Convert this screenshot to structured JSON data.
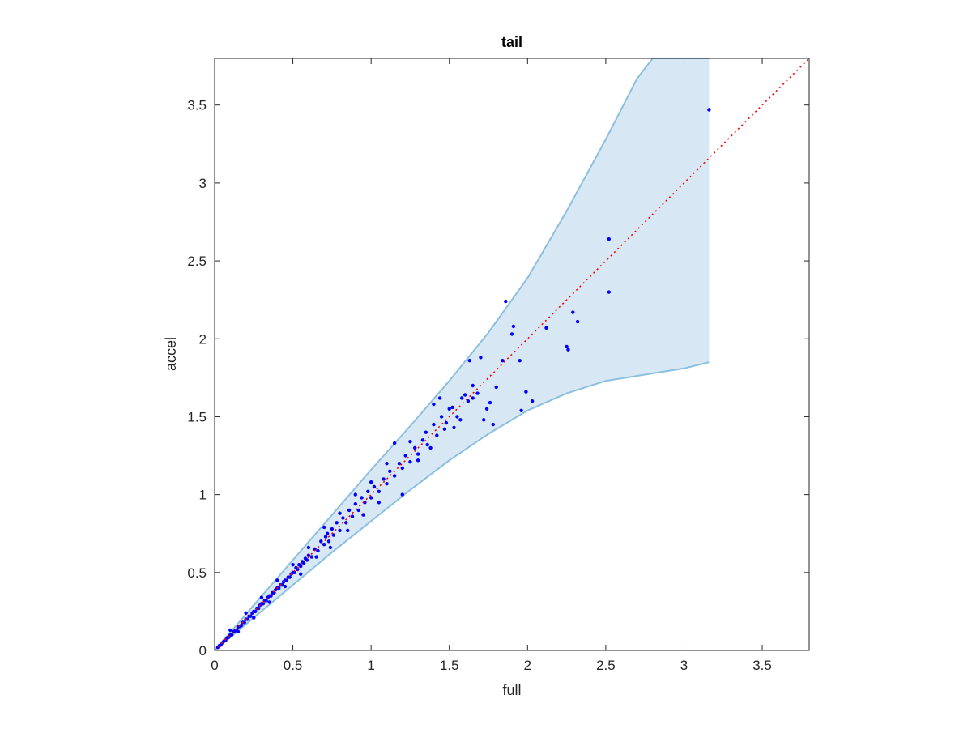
{
  "chart_data": {
    "type": "scatter",
    "title": "tail",
    "xlabel": "full",
    "ylabel": "accel",
    "xlim": [
      0,
      3.8
    ],
    "ylim": [
      0,
      3.8
    ],
    "grid": false,
    "x_ticks": [
      0,
      0.5,
      1,
      1.5,
      2,
      2.5,
      3,
      3.5
    ],
    "x_tick_labels": [
      "0",
      "0.5",
      "1",
      "1.5",
      "2",
      "2.5",
      "3",
      "3.5"
    ],
    "y_ticks": [
      0,
      0.5,
      1,
      1.5,
      2,
      2.5,
      3,
      3.5
    ],
    "y_tick_labels": [
      "0",
      "0.5",
      "1",
      "1.5",
      "2",
      "2.5",
      "3",
      "3.5"
    ],
    "reference_line": {
      "style": "dotted",
      "color": "#ff0000",
      "x": [
        0,
        3.8
      ],
      "y": [
        0,
        3.8
      ]
    },
    "band": {
      "fill_color": "#d7e8f4",
      "edge_color": "#8bbfe0",
      "upper": [
        [
          0,
          0
        ],
        [
          0.25,
          0.29
        ],
        [
          0.5,
          0.58
        ],
        [
          0.75,
          0.87
        ],
        [
          1.0,
          1.16
        ],
        [
          1.25,
          1.44
        ],
        [
          1.5,
          1.73
        ],
        [
          1.75,
          2.04
        ],
        [
          2.0,
          2.39
        ],
        [
          2.25,
          2.82
        ],
        [
          2.5,
          3.28
        ],
        [
          2.7,
          3.67
        ],
        [
          2.8,
          3.8
        ],
        [
          3.16,
          3.8
        ]
      ],
      "lower": [
        [
          0,
          0
        ],
        [
          0.25,
          0.21
        ],
        [
          0.5,
          0.42
        ],
        [
          0.75,
          0.63
        ],
        [
          1.0,
          0.83
        ],
        [
          1.25,
          1.03
        ],
        [
          1.5,
          1.22
        ],
        [
          1.75,
          1.39
        ],
        [
          2.0,
          1.54
        ],
        [
          2.25,
          1.65
        ],
        [
          2.5,
          1.73
        ],
        [
          2.75,
          1.77
        ],
        [
          3.0,
          1.81
        ],
        [
          3.16,
          1.85
        ]
      ]
    },
    "series": [
      {
        "marker_color": "#0000ff",
        "points": [
          [
            0.02,
            0.02
          ],
          [
            0.03,
            0.03
          ],
          [
            0.04,
            0.035
          ],
          [
            0.05,
            0.05
          ],
          [
            0.06,
            0.06
          ],
          [
            0.07,
            0.065
          ],
          [
            0.08,
            0.08
          ],
          [
            0.09,
            0.085
          ],
          [
            0.1,
            0.1
          ],
          [
            0.11,
            0.1
          ],
          [
            0.12,
            0.12
          ],
          [
            0.13,
            0.125
          ],
          [
            0.14,
            0.13
          ],
          [
            0.15,
            0.15
          ],
          [
            0.16,
            0.155
          ],
          [
            0.17,
            0.16
          ],
          [
            0.18,
            0.18
          ],
          [
            0.19,
            0.18
          ],
          [
            0.2,
            0.2
          ],
          [
            0.21,
            0.2
          ],
          [
            0.22,
            0.22
          ],
          [
            0.23,
            0.22
          ],
          [
            0.24,
            0.24
          ],
          [
            0.25,
            0.25
          ],
          [
            0.26,
            0.25
          ],
          [
            0.27,
            0.27
          ],
          [
            0.28,
            0.27
          ],
          [
            0.29,
            0.29
          ],
          [
            0.3,
            0.3
          ],
          [
            0.31,
            0.3
          ],
          [
            0.32,
            0.32
          ],
          [
            0.33,
            0.32
          ],
          [
            0.34,
            0.34
          ],
          [
            0.35,
            0.35
          ],
          [
            0.36,
            0.35
          ],
          [
            0.37,
            0.37
          ],
          [
            0.38,
            0.37
          ],
          [
            0.39,
            0.39
          ],
          [
            0.4,
            0.4
          ],
          [
            0.41,
            0.4
          ],
          [
            0.42,
            0.42
          ],
          [
            0.43,
            0.42
          ],
          [
            0.44,
            0.44
          ],
          [
            0.45,
            0.45
          ],
          [
            0.46,
            0.45
          ],
          [
            0.47,
            0.47
          ],
          [
            0.48,
            0.47
          ],
          [
            0.49,
            0.49
          ],
          [
            0.5,
            0.5
          ],
          [
            0.51,
            0.5
          ],
          [
            0.52,
            0.53
          ],
          [
            0.53,
            0.52
          ],
          [
            0.54,
            0.55
          ],
          [
            0.55,
            0.54
          ],
          [
            0.56,
            0.57
          ],
          [
            0.57,
            0.56
          ],
          [
            0.58,
            0.59
          ],
          [
            0.59,
            0.58
          ],
          [
            0.6,
            0.61
          ],
          [
            0.62,
            0.6
          ],
          [
            0.64,
            0.65
          ],
          [
            0.66,
            0.64
          ],
          [
            0.68,
            0.7
          ],
          [
            0.7,
            0.68
          ],
          [
            0.71,
            0.73
          ],
          [
            0.72,
            0.75
          ],
          [
            0.73,
            0.7
          ],
          [
            0.75,
            0.78
          ],
          [
            0.76,
            0.74
          ],
          [
            0.78,
            0.82
          ],
          [
            0.8,
            0.77
          ],
          [
            0.82,
            0.85
          ],
          [
            0.84,
            0.82
          ],
          [
            0.86,
            0.9
          ],
          [
            0.88,
            0.86
          ],
          [
            0.9,
            0.94
          ],
          [
            0.92,
            0.9
          ],
          [
            0.94,
            0.98
          ],
          [
            0.96,
            0.95
          ],
          [
            0.98,
            1.02
          ],
          [
            1.0,
            0.98
          ],
          [
            1.02,
            1.05
          ],
          [
            1.05,
            1.02
          ],
          [
            1.08,
            1.1
          ],
          [
            1.1,
            1.07
          ],
          [
            1.12,
            1.15
          ],
          [
            1.15,
            1.12
          ],
          [
            1.18,
            1.2
          ],
          [
            1.2,
            1.17
          ],
          [
            1.22,
            1.25
          ],
          [
            1.25,
            1.21
          ],
          [
            1.28,
            1.3
          ],
          [
            1.3,
            1.26
          ],
          [
            1.33,
            1.35
          ],
          [
            1.36,
            1.32
          ],
          [
            1.4,
            1.45
          ],
          [
            1.42,
            1.38
          ],
          [
            1.45,
            1.5
          ],
          [
            1.48,
            1.46
          ],
          [
            1.52,
            1.56
          ],
          [
            1.55,
            1.5
          ],
          [
            1.58,
            1.62
          ],
          [
            1.62,
            1.6
          ],
          [
            1.65,
            1.7
          ],
          [
            1.68,
            1.65
          ],
          [
            0.1,
            0.13
          ],
          [
            0.15,
            0.12
          ],
          [
            0.2,
            0.24
          ],
          [
            0.25,
            0.21
          ],
          [
            0.3,
            0.34
          ],
          [
            0.35,
            0.31
          ],
          [
            0.4,
            0.45
          ],
          [
            0.45,
            0.41
          ],
          [
            0.5,
            0.55
          ],
          [
            0.55,
            0.49
          ],
          [
            0.6,
            0.66
          ],
          [
            0.65,
            0.6
          ],
          [
            0.7,
            0.79
          ],
          [
            0.74,
            0.66
          ],
          [
            0.8,
            0.88
          ],
          [
            0.85,
            0.77
          ],
          [
            0.9,
            1.0
          ],
          [
            0.95,
            0.87
          ],
          [
            1.0,
            1.08
          ],
          [
            1.05,
            0.95
          ],
          [
            1.1,
            1.2
          ],
          [
            1.15,
            1.33
          ],
          [
            1.2,
            1.0
          ],
          [
            1.25,
            1.34
          ],
          [
            1.3,
            1.22
          ],
          [
            1.35,
            1.4
          ],
          [
            1.38,
            1.3
          ],
          [
            1.4,
            1.58
          ],
          [
            1.44,
            1.62
          ],
          [
            1.47,
            1.42
          ],
          [
            1.5,
            1.55
          ],
          [
            1.53,
            1.43
          ],
          [
            1.57,
            1.48
          ],
          [
            1.6,
            1.64
          ],
          [
            1.63,
            1.86
          ],
          [
            1.65,
            1.62
          ],
          [
            1.7,
            1.88
          ],
          [
            1.72,
            1.48
          ],
          [
            1.74,
            1.55
          ],
          [
            1.76,
            1.59
          ],
          [
            1.78,
            1.45
          ],
          [
            1.8,
            1.69
          ],
          [
            1.84,
            1.86
          ],
          [
            1.86,
            2.24
          ],
          [
            1.9,
            2.03
          ],
          [
            1.91,
            2.08
          ],
          [
            1.95,
            1.86
          ],
          [
            1.96,
            1.54
          ],
          [
            1.99,
            1.66
          ],
          [
            2.03,
            1.6
          ],
          [
            2.12,
            2.07
          ],
          [
            2.25,
            1.95
          ],
          [
            2.26,
            1.93
          ],
          [
            2.29,
            2.17
          ],
          [
            2.32,
            2.11
          ],
          [
            2.52,
            2.64
          ],
          [
            2.52,
            2.3
          ],
          [
            3.16,
            3.47
          ]
        ]
      }
    ]
  }
}
